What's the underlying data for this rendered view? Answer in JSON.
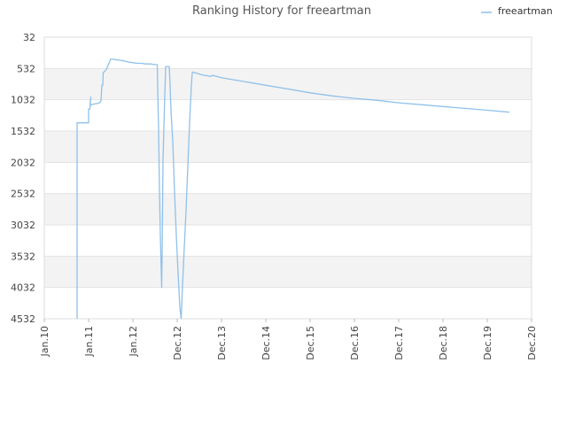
{
  "chart_data": {
    "type": "line",
    "title": "Ranking History for freeartman",
    "legend": {
      "position": "top-right",
      "entries": [
        "freeartman"
      ]
    },
    "x_ticks": [
      "Jan.10",
      "Jan.11",
      "Jan.12",
      "Dec.12",
      "Dec.13",
      "Dec.14",
      "Dec.15",
      "Dec.16",
      "Dec.17",
      "Dec.18",
      "Dec.19",
      "Dec.20"
    ],
    "y_ticks": [
      32,
      532,
      1032,
      1532,
      2032,
      2532,
      3032,
      3532,
      4032,
      4532
    ],
    "ylim": [
      4532,
      32
    ],
    "y_reversed": true,
    "grid": true,
    "colors": {
      "series": "#8fc1ea",
      "band": "#f3f3f3",
      "grid": "#e3e3e3",
      "frame": "#dddddd"
    },
    "series": [
      {
        "name": "freeartman",
        "points": [
          [
            0.74,
            4532
          ],
          [
            0.74,
            1400
          ],
          [
            0.88,
            1400
          ],
          [
            1.0,
            1400
          ],
          [
            1.0,
            1180
          ],
          [
            1.03,
            1180
          ],
          [
            1.05,
            990
          ],
          [
            1.03,
            1120
          ],
          [
            1.12,
            1100
          ],
          [
            1.2,
            1090
          ],
          [
            1.25,
            1080
          ],
          [
            1.28,
            1050
          ],
          [
            1.3,
            800
          ],
          [
            1.32,
            800
          ],
          [
            1.33,
            600
          ],
          [
            1.36,
            580
          ],
          [
            1.4,
            550
          ],
          [
            1.44,
            480
          ],
          [
            1.5,
            380
          ],
          [
            1.6,
            390
          ],
          [
            1.7,
            400
          ],
          [
            1.8,
            410
          ],
          [
            1.9,
            430
          ],
          [
            2.0,
            440
          ],
          [
            2.1,
            450
          ],
          [
            2.2,
            450
          ],
          [
            2.28,
            460
          ],
          [
            2.4,
            460
          ],
          [
            2.5,
            470
          ],
          [
            2.55,
            470
          ],
          [
            2.56,
            850
          ],
          [
            2.58,
            1500
          ],
          [
            2.6,
            2500
          ],
          [
            2.62,
            3200
          ],
          [
            2.65,
            4032
          ],
          [
            2.66,
            3500
          ],
          [
            2.68,
            2000
          ],
          [
            2.72,
            950
          ],
          [
            2.74,
            500
          ],
          [
            2.76,
            500
          ],
          [
            2.8,
            500
          ],
          [
            2.82,
            500
          ],
          [
            2.84,
            800
          ],
          [
            2.86,
            1200
          ],
          [
            2.9,
            1700
          ],
          [
            2.94,
            2500
          ],
          [
            2.98,
            3200
          ],
          [
            3.02,
            3800
          ],
          [
            3.06,
            4350
          ],
          [
            3.09,
            4532
          ],
          [
            3.12,
            4000
          ],
          [
            3.16,
            3400
          ],
          [
            3.2,
            2800
          ],
          [
            3.24,
            2100
          ],
          [
            3.28,
            1400
          ],
          [
            3.32,
            800
          ],
          [
            3.34,
            600
          ],
          [
            3.35,
            590
          ],
          [
            3.4,
            600
          ],
          [
            3.5,
            620
          ],
          [
            3.6,
            640
          ],
          [
            3.7,
            650
          ],
          [
            3.75,
            660
          ],
          [
            3.8,
            640
          ],
          [
            3.9,
            660
          ],
          [
            4.0,
            680
          ],
          [
            4.5,
            740
          ],
          [
            5.0,
            800
          ],
          [
            5.5,
            860
          ],
          [
            6.0,
            920
          ],
          [
            6.5,
            970
          ],
          [
            7.0,
            1010
          ],
          [
            7.5,
            1040
          ],
          [
            8.0,
            1080
          ],
          [
            8.5,
            1110
          ],
          [
            9.0,
            1140
          ],
          [
            9.5,
            1170
          ],
          [
            10.0,
            1200
          ],
          [
            10.5,
            1230
          ]
        ]
      }
    ]
  }
}
